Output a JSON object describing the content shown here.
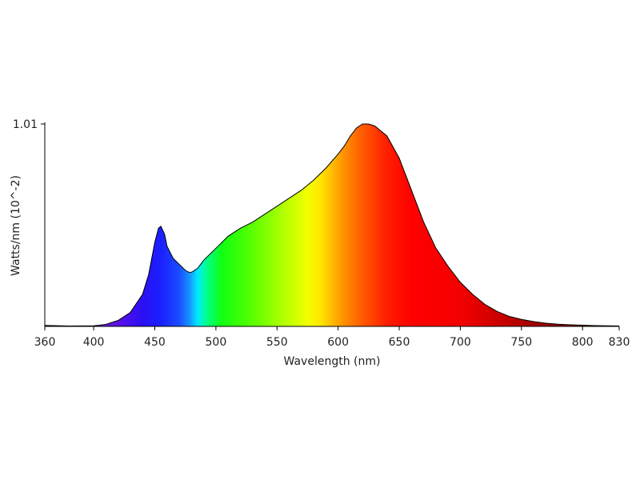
{
  "chart_data": {
    "type": "area",
    "xlabel": "Wavelength (nm)",
    "ylabel": "Watts/nm (10^-2)",
    "xlim": [
      360,
      830
    ],
    "ylim": [
      0,
      1.01
    ],
    "x_ticks": [
      360,
      400,
      450,
      500,
      550,
      600,
      650,
      700,
      750,
      800,
      830
    ],
    "y_tick_labels": [
      {
        "value": 1.01,
        "label": "1.01"
      }
    ],
    "grid": false,
    "fill": "visible-spectrum gradient by wavelength",
    "x": [
      360,
      380,
      400,
      410,
      420,
      430,
      440,
      445,
      450,
      453,
      455,
      458,
      460,
      465,
      470,
      475,
      478,
      480,
      485,
      490,
      500,
      510,
      520,
      530,
      540,
      550,
      560,
      570,
      580,
      590,
      600,
      605,
      610,
      615,
      620,
      625,
      630,
      640,
      650,
      660,
      670,
      680,
      690,
      700,
      710,
      720,
      730,
      740,
      750,
      760,
      770,
      780,
      790,
      800,
      810,
      820,
      830
    ],
    "y": [
      0.005,
      0.002,
      0.003,
      0.01,
      0.03,
      0.07,
      0.16,
      0.26,
      0.42,
      0.49,
      0.5,
      0.46,
      0.4,
      0.34,
      0.31,
      0.28,
      0.27,
      0.27,
      0.29,
      0.33,
      0.39,
      0.45,
      0.49,
      0.52,
      0.56,
      0.6,
      0.64,
      0.68,
      0.73,
      0.79,
      0.86,
      0.9,
      0.95,
      0.99,
      1.01,
      1.01,
      1.0,
      0.95,
      0.84,
      0.68,
      0.52,
      0.39,
      0.3,
      0.22,
      0.16,
      0.11,
      0.075,
      0.05,
      0.035,
      0.024,
      0.016,
      0.011,
      0.008,
      0.006,
      0.004,
      0.003,
      0.002
    ]
  }
}
